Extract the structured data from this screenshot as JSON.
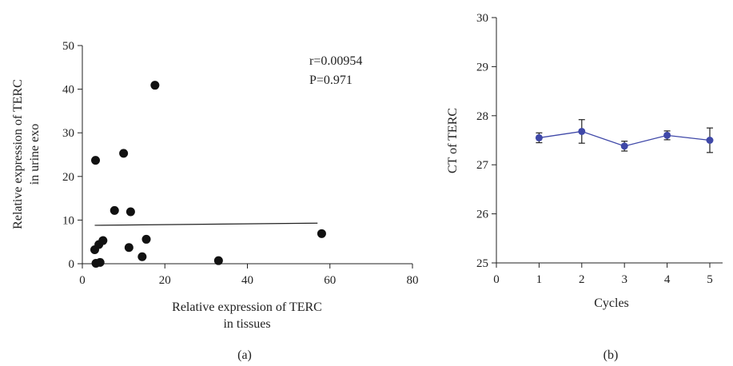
{
  "chart_data": [
    {
      "type": "scatter",
      "panel_label": "(a)",
      "xlabel": [
        "Relative expression of TERC",
        "in tissues"
      ],
      "ylabel": [
        "Relative expression of TERC",
        "in urine exo"
      ],
      "xlim": [
        0,
        80
      ],
      "ylim": [
        0,
        50
      ],
      "xticks": [
        0,
        20,
        40,
        60,
        80
      ],
      "yticks": [
        0,
        10,
        20,
        30,
        40,
        50
      ],
      "grid": false,
      "annotations": [
        "r=0.00954",
        "P=0.971"
      ],
      "points": [
        {
          "x": 3.2,
          "y": 23.7
        },
        {
          "x": 3.0,
          "y": 3.2
        },
        {
          "x": 3.3,
          "y": 0.1
        },
        {
          "x": 4.0,
          "y": 4.4
        },
        {
          "x": 4.3,
          "y": 0.3
        },
        {
          "x": 5.0,
          "y": 5.3
        },
        {
          "x": 7.8,
          "y": 12.2
        },
        {
          "x": 10.0,
          "y": 25.3
        },
        {
          "x": 11.3,
          "y": 3.7
        },
        {
          "x": 11.7,
          "y": 11.9
        },
        {
          "x": 14.5,
          "y": 1.6
        },
        {
          "x": 15.5,
          "y": 5.6
        },
        {
          "x": 17.6,
          "y": 40.9
        },
        {
          "x": 33.0,
          "y": 0.7
        },
        {
          "x": 58.0,
          "y": 6.9
        }
      ],
      "regression_line": {
        "x": [
          3,
          57
        ],
        "y": [
          8.8,
          9.3
        ]
      }
    },
    {
      "type": "line",
      "panel_label": "(b)",
      "xlabel": "Cycles",
      "ylabel": "CT of TERC",
      "xlim": [
        0,
        5.3
      ],
      "ylim": [
        25,
        30
      ],
      "xticks": [
        0,
        1,
        2,
        3,
        4,
        5
      ],
      "yticks": [
        25,
        26,
        27,
        28,
        29,
        30
      ],
      "grid": false,
      "series": [
        {
          "color": "#3f48a8",
          "x": [
            1,
            2,
            3,
            4,
            5
          ],
          "y": [
            27.55,
            27.68,
            27.38,
            27.6,
            27.5
          ],
          "error": [
            0.1,
            0.24,
            0.1,
            0.09,
            0.25
          ]
        }
      ]
    }
  ]
}
